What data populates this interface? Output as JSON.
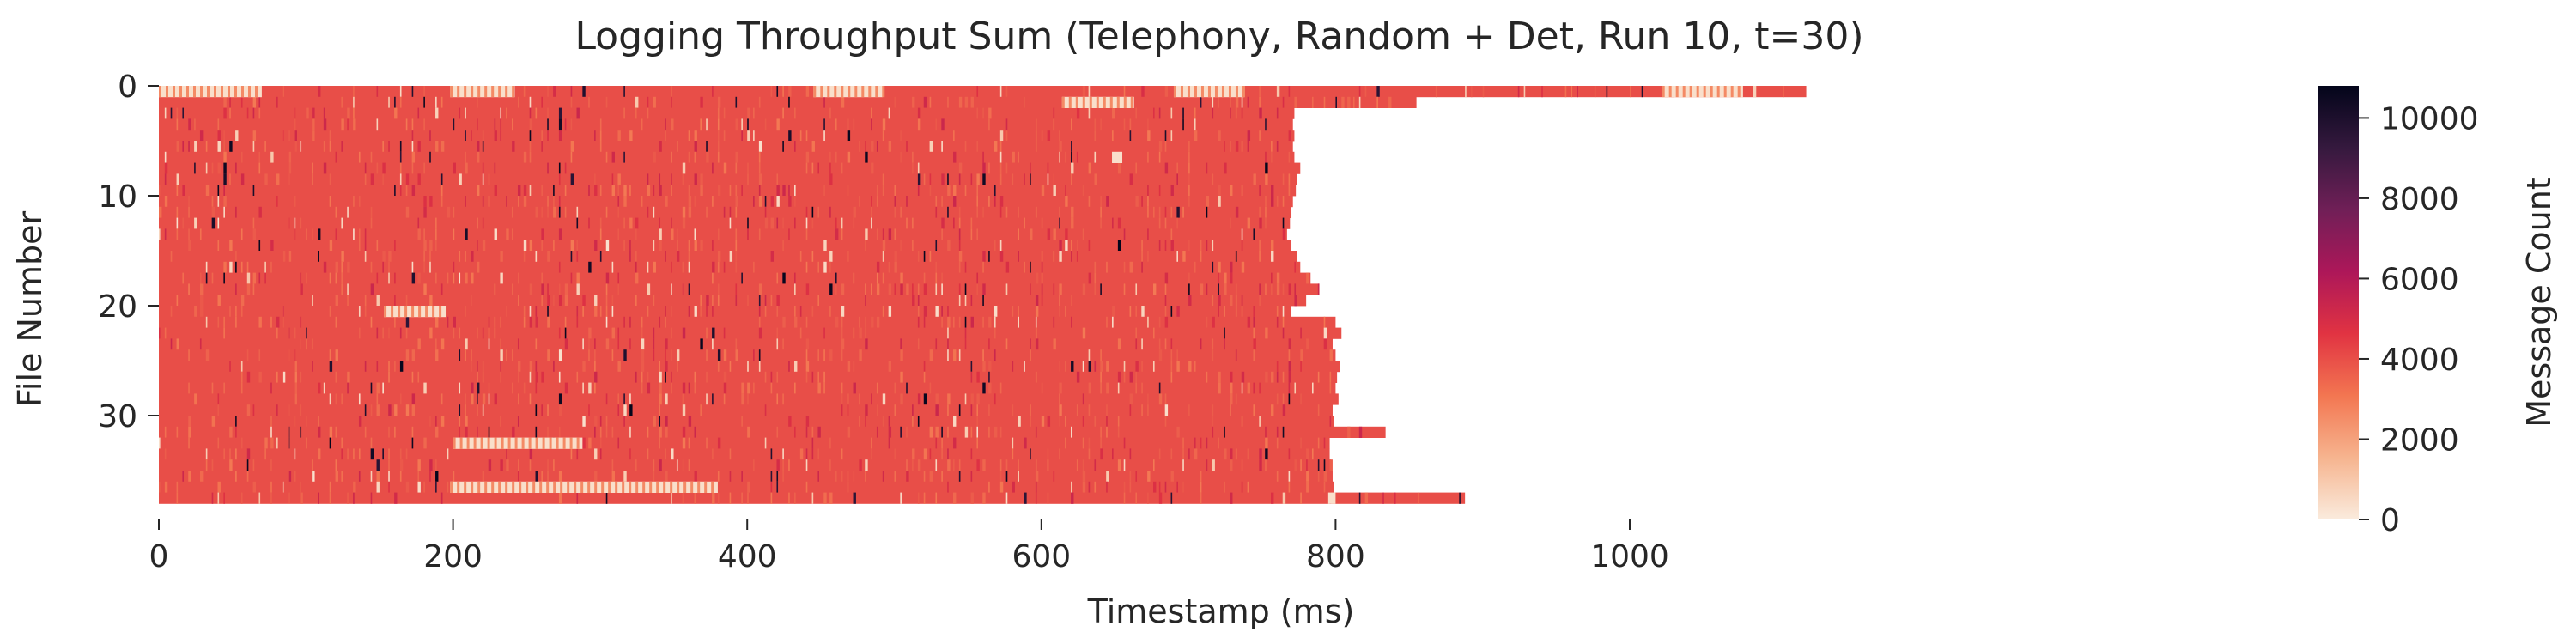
{
  "chart_data": {
    "type": "heatmap",
    "title": "Logging Throughput Sum (Telephony, Random + Det, Run 10, t=30)",
    "xlabel": "Timestamp (ms)",
    "ylabel": "File Number",
    "colorbar_label": "Message Count",
    "x_ticks": [
      "0",
      "200",
      "400",
      "600",
      "800",
      "1000"
    ],
    "y_ticks": [
      "0",
      "10",
      "20",
      "30"
    ],
    "colorbar_ticks": [
      "0",
      "2000",
      "4000",
      "6000",
      "8000",
      "10000"
    ],
    "xlim": [
      0,
      1124
    ],
    "ylim": [
      0,
      38
    ],
    "zlim": [
      0,
      10800
    ],
    "colormap": "rocket_r",
    "colormap_stops": [
      "#faebdd",
      "#f6b48f",
      "#f37651",
      "#e13342",
      "#ad1759",
      "#701f57",
      "#35193e",
      "#03051a"
    ],
    "typical_value": 4000,
    "rows": 38,
    "row_end_ms": [
      1120,
      855,
      772,
      771,
      772,
      771,
      772,
      776,
      774,
      773,
      771,
      770,
      769,
      767,
      770,
      774,
      776,
      783,
      789,
      780,
      770,
      800,
      804,
      798,
      800,
      803,
      801,
      800,
      802,
      798,
      799,
      834,
      796,
      796,
      797,
      798,
      799,
      888
    ],
    "light_segments": [
      {
        "row": 0,
        "x": [
          0,
          70
        ]
      },
      {
        "row": 0,
        "x": [
          198,
          242
        ]
      },
      {
        "row": 0,
        "x": [
          445,
          492
        ]
      },
      {
        "row": 0,
        "x": [
          690,
          738
        ]
      },
      {
        "row": 0,
        "x": [
          1022,
          1077
        ]
      },
      {
        "row": 1,
        "x": [
          614,
          663
        ]
      },
      {
        "row": 6,
        "x": [
          648,
          655
        ]
      },
      {
        "row": 20,
        "x": [
          153,
          195
        ]
      },
      {
        "row": 32,
        "x": [
          200,
          288
        ]
      },
      {
        "row": 36,
        "x": [
          198,
          380
        ]
      },
      {
        "row": 37,
        "x": [
          795,
          800
        ]
      }
    ]
  }
}
